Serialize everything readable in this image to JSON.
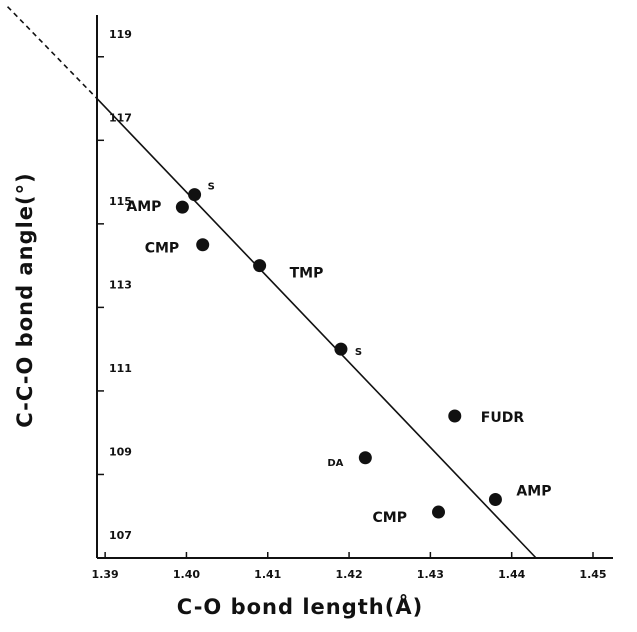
{
  "chart_data": {
    "type": "scatter",
    "x_label": "C-O  bond  length(Å)",
    "y_label": "C-C-O  bond  angle(°)",
    "xlim": [
      1.389,
      1.45
    ],
    "ylim": [
      107,
      120
    ],
    "xticks": [
      1.39,
      {
        "value": 1.4,
        "label": "1.40"
      },
      1.41,
      1.42,
      1.43,
      1.44,
      1.45
    ],
    "yticks": [
      107,
      109,
      111,
      113,
      115,
      117,
      119
    ],
    "color": "#111111",
    "series": [
      {
        "x": [
          1.3995,
          1.401,
          1.402,
          1.409,
          1.419,
          1.433,
          1.422,
          1.431,
          1.438
        ],
        "values": [
          115.4,
          115.7,
          114.5,
          114.0,
          112.0,
          110.4,
          109.4,
          108.1,
          108.4
        ],
        "labels": [
          "AMP",
          "S",
          "CMP",
          "TMP",
          "S",
          "FUDR",
          "DA",
          "CMP",
          "AMP"
        ]
      }
    ],
    "fit_lines": [
      {
        "x": [
          1.378,
          1.389
        ],
        "values": [
          120.2,
          118.0
        ],
        "dashed": true
      },
      {
        "x": [
          1.389,
          1.443
        ],
        "values": [
          118.0,
          107.0
        ],
        "dashed": false
      }
    ]
  }
}
